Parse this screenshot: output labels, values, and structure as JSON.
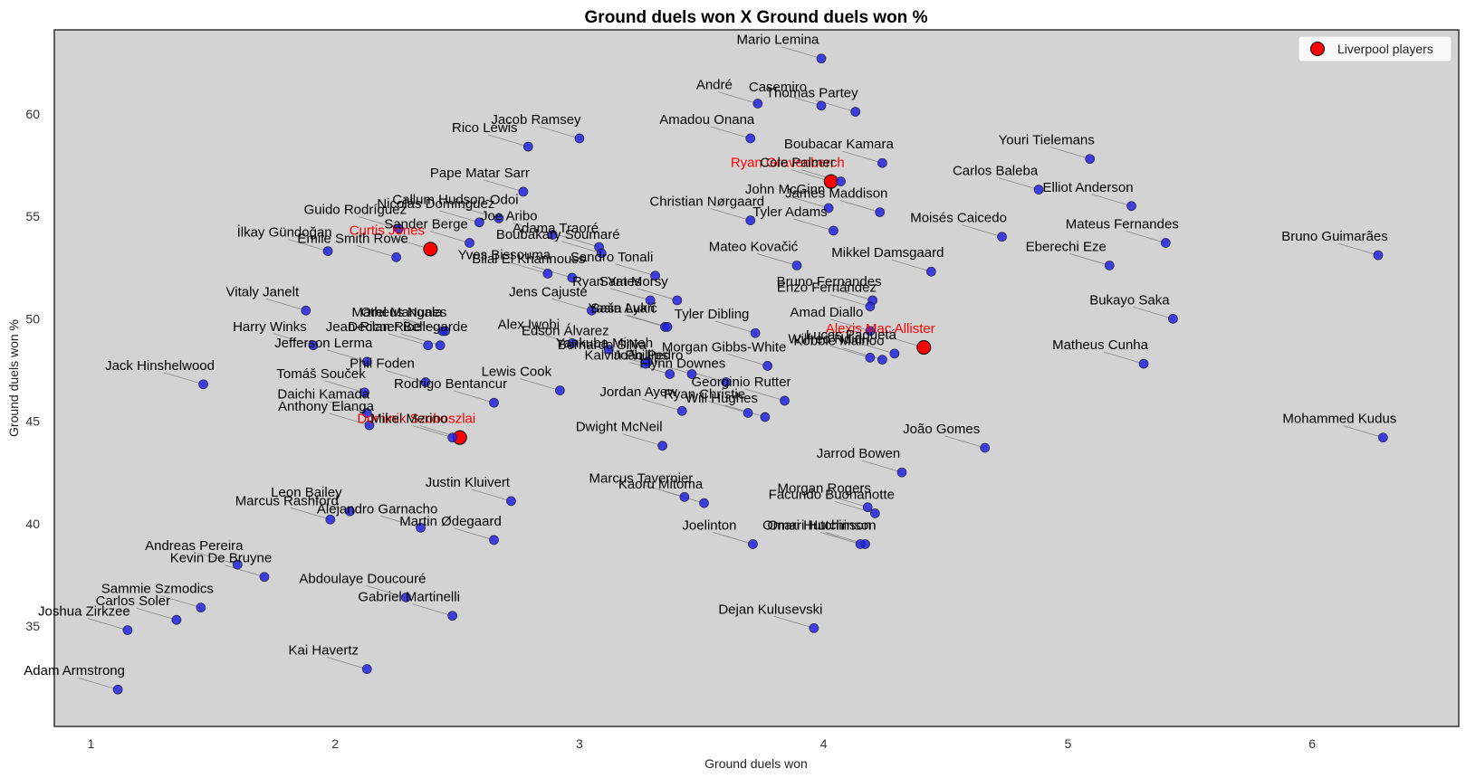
{
  "chart_data": {
    "type": "scatter",
    "title": "Ground duels won X Ground duels won %",
    "xlabel": "Ground duels won",
    "ylabel": "Ground duels won %",
    "xlim": [
      0.85,
      6.6
    ],
    "ylim": [
      30.1,
      64.1
    ],
    "xticks": [
      1,
      2,
      3,
      4,
      5,
      6
    ],
    "yticks": [
      35,
      40,
      45,
      50,
      55,
      60
    ],
    "grid": false,
    "legend_position": "top-right",
    "colors": {
      "background": "#d3d3d3",
      "points": "#2323e0",
      "highlight": "#ff0000",
      "label_default": "#000000",
      "label_highlight": "#ff0000"
    },
    "series": [
      {
        "name": "Liverpool players",
        "points": [
          {
            "label": "Ryan Gravenberch",
            "x": 4.03,
            "y": 56.7
          },
          {
            "label": "Curtis Jones",
            "x": 2.39,
            "y": 53.4
          },
          {
            "label": "Alexis Mac Allister",
            "x": 4.41,
            "y": 48.6
          },
          {
            "label": "Dominik Szoboszlai",
            "x": 2.51,
            "y": 44.2
          }
        ]
      },
      {
        "points": [
          {
            "label": "Mario Lemina",
            "x": 3.99,
            "y": 62.7
          },
          {
            "label": "André",
            "x": 3.73,
            "y": 60.5
          },
          {
            "label": "Casemiro",
            "x": 3.99,
            "y": 60.4
          },
          {
            "label": "Thomas Partey",
            "x": 4.13,
            "y": 60.1
          },
          {
            "label": "Jacob Ramsey",
            "x": 3.0,
            "y": 58.8
          },
          {
            "label": "Rico Lewis",
            "x": 2.79,
            "y": 58.4
          },
          {
            "label": "Amadou Onana",
            "x": 3.7,
            "y": 58.8
          },
          {
            "label": "Boubacar Kamara",
            "x": 4.24,
            "y": 57.6
          },
          {
            "label": "Youri Tielemans",
            "x": 5.09,
            "y": 57.8
          },
          {
            "label": "Cole Palmer",
            "x": 4.07,
            "y": 56.7
          },
          {
            "label": "Carlos Baleba",
            "x": 4.88,
            "y": 56.3
          },
          {
            "label": "Pape Matar Sarr",
            "x": 2.77,
            "y": 56.2
          },
          {
            "label": "John McGinn",
            "x": 4.02,
            "y": 55.4
          },
          {
            "label": "Elliot Anderson",
            "x": 5.26,
            "y": 55.5
          },
          {
            "label": "Callum Hudson-Odoi",
            "x": 2.67,
            "y": 54.9
          },
          {
            "label": "Christian Nørgaard",
            "x": 3.7,
            "y": 54.8
          },
          {
            "label": "James Maddison",
            "x": 4.23,
            "y": 55.2
          },
          {
            "label": "Guido Rodríguez",
            "x": 2.26,
            "y": 54.4
          },
          {
            "label": "Nicolás Domínguez",
            "x": 2.59,
            "y": 54.7
          },
          {
            "label": "Joe Aribo",
            "x": 2.89,
            "y": 54.1
          },
          {
            "label": "Tyler Adams",
            "x": 4.04,
            "y": 54.3
          },
          {
            "label": "Moisés Caicedo",
            "x": 4.73,
            "y": 54.0
          },
          {
            "label": "Sander Berge",
            "x": 2.55,
            "y": 53.7
          },
          {
            "label": "Adama Traoré",
            "x": 3.08,
            "y": 53.5
          },
          {
            "label": "Mateus Fernandes",
            "x": 5.4,
            "y": 53.7
          },
          {
            "label": "İlkay Gündoğan",
            "x": 1.97,
            "y": 53.3
          },
          {
            "label": "Boubakary Soumaré",
            "x": 3.09,
            "y": 53.2
          },
          {
            "label": "Bruno Guimarães",
            "x": 6.27,
            "y": 53.1
          },
          {
            "label": "Emile Smith Rowe",
            "x": 2.25,
            "y": 53.0
          },
          {
            "label": "Mateo Kovačić",
            "x": 3.89,
            "y": 52.6
          },
          {
            "label": "Eberechi Eze",
            "x": 5.17,
            "y": 52.6
          },
          {
            "label": "Mikkel Damsgaard",
            "x": 4.44,
            "y": 52.3
          },
          {
            "label": "Yves Bissouma",
            "x": 2.87,
            "y": 52.2
          },
          {
            "label": "Sandro Tonali",
            "x": 3.31,
            "y": 52.1
          },
          {
            "label": "Bilal El Khannouss",
            "x": 2.97,
            "y": 52.0
          },
          {
            "label": "Bruno Fernandes",
            "x": 4.2,
            "y": 50.9
          },
          {
            "label": "Ryan Yates",
            "x": 3.29,
            "y": 50.9
          },
          {
            "label": "Sam Morsy",
            "x": 3.4,
            "y": 50.9
          },
          {
            "label": "Vitaly Janelt",
            "x": 1.88,
            "y": 50.4
          },
          {
            "label": "Jens Cajuste",
            "x": 3.05,
            "y": 50.4
          },
          {
            "label": "Enzo Fernández",
            "x": 4.19,
            "y": 50.6
          },
          {
            "label": "Yasin Ayari",
            "x": 3.35,
            "y": 49.6
          },
          {
            "label": "Bukayo Saka",
            "x": 5.43,
            "y": 50.0
          },
          {
            "label": "Saša Lukić",
            "x": 3.36,
            "y": 49.6
          },
          {
            "label": "Amad Diallo",
            "x": 4.19,
            "y": 49.4
          },
          {
            "label": "Orel Mangala",
            "x": 2.45,
            "y": 49.4
          },
          {
            "label": "Matheus Nunes",
            "x": 2.44,
            "y": 49.4
          },
          {
            "label": "Harry Winks",
            "x": 1.91,
            "y": 48.7
          },
          {
            "label": "Jean-Ricner Bellegarde",
            "x": 2.43,
            "y": 48.7
          },
          {
            "label": "Declan Rice",
            "x": 2.38,
            "y": 48.7
          },
          {
            "label": "Tyler Dibling",
            "x": 3.72,
            "y": 49.3
          },
          {
            "label": "Alex Iwobi",
            "x": 2.97,
            "y": 48.8
          },
          {
            "label": "Edson Álvarez",
            "x": 3.12,
            "y": 48.5
          },
          {
            "label": "Lucas Paquetá",
            "x": 4.29,
            "y": 48.3
          },
          {
            "label": "Jefferson Lerma",
            "x": 2.13,
            "y": 47.9
          },
          {
            "label": "Yankuba Minteh",
            "x": 3.28,
            "y": 47.9
          },
          {
            "label": "Bernardo Silva",
            "x": 3.27,
            "y": 47.8
          },
          {
            "label": "Morgan Gibbs-White",
            "x": 3.77,
            "y": 47.7
          },
          {
            "label": "Kobbie Mainoo",
            "x": 4.24,
            "y": 48.0
          },
          {
            "label": "Wilfred Ndidi",
            "x": 4.19,
            "y": 48.1
          },
          {
            "label": "Matheus Cunha",
            "x": 5.31,
            "y": 47.8
          },
          {
            "label": "Phil Foden",
            "x": 2.37,
            "y": 46.9
          },
          {
            "label": "Jack Hinshelwood",
            "x": 1.46,
            "y": 46.8
          },
          {
            "label": "João Pedro",
            "x": 3.46,
            "y": 47.3
          },
          {
            "label": "Kalvin Phillips",
            "x": 3.37,
            "y": 47.3
          },
          {
            "label": "Lewis Cook",
            "x": 2.92,
            "y": 46.5
          },
          {
            "label": "Tomáš Souček",
            "x": 2.12,
            "y": 46.4
          },
          {
            "label": "Flynn Downes",
            "x": 3.6,
            "y": 46.9
          },
          {
            "label": "Georginio Rutter",
            "x": 3.84,
            "y": 46.0
          },
          {
            "label": "Rodrigo Bentancur",
            "x": 2.65,
            "y": 45.9
          },
          {
            "label": "Daichi Kamada",
            "x": 2.13,
            "y": 45.4
          },
          {
            "label": "Jordan Ayew",
            "x": 3.42,
            "y": 45.5
          },
          {
            "label": "Ryan Christie",
            "x": 3.69,
            "y": 45.4
          },
          {
            "label": "Will Hughes",
            "x": 3.76,
            "y": 45.2
          },
          {
            "label": "Anthony Elanga",
            "x": 2.14,
            "y": 44.8
          },
          {
            "label": "Mikel Merino",
            "x": 2.48,
            "y": 44.2
          },
          {
            "label": "Dwight McNeil",
            "x": 3.34,
            "y": 43.8
          },
          {
            "label": "João Gomes",
            "x": 4.66,
            "y": 43.7
          },
          {
            "label": "Mohammed Kudus",
            "x": 6.29,
            "y": 44.2
          },
          {
            "label": "Jarrod Bowen",
            "x": 4.32,
            "y": 42.5
          },
          {
            "label": "Justin Kluivert",
            "x": 2.72,
            "y": 41.1
          },
          {
            "label": "Marcus Tavernier",
            "x": 3.43,
            "y": 41.3
          },
          {
            "label": "Kaoru Mitoma",
            "x": 3.51,
            "y": 41.0
          },
          {
            "label": "Morgan Rogers",
            "x": 4.18,
            "y": 40.8
          },
          {
            "label": "Facundo Buonanotte",
            "x": 4.21,
            "y": 40.5
          },
          {
            "label": "Leon Bailey",
            "x": 2.06,
            "y": 40.6
          },
          {
            "label": "Marcus Rashford",
            "x": 1.98,
            "y": 40.2
          },
          {
            "label": "Alejandro Garnacho",
            "x": 2.35,
            "y": 39.8
          },
          {
            "label": "Omari Hutchinson",
            "x": 4.17,
            "y": 39.0
          },
          {
            "label": "Omari Hutchinson",
            "x": 4.15,
            "y": 39.0
          },
          {
            "label": "Joelinton",
            "x": 3.71,
            "y": 39.0
          },
          {
            "label": "Martin Ødegaard",
            "x": 2.65,
            "y": 39.2
          },
          {
            "label": "Andreas Pereira",
            "x": 1.6,
            "y": 38.0
          },
          {
            "label": "Kevin De Bruyne",
            "x": 1.71,
            "y": 37.4
          },
          {
            "label": "Abdoulaye Doucouré",
            "x": 2.29,
            "y": 36.4
          },
          {
            "label": "Sammie Szmodics",
            "x": 1.45,
            "y": 35.9
          },
          {
            "label": "Gabriel Martinelli",
            "x": 2.48,
            "y": 35.5
          },
          {
            "label": "Carlos Soler",
            "x": 1.35,
            "y": 35.3
          },
          {
            "label": "Joshua Zirkzee",
            "x": 1.15,
            "y": 34.8
          },
          {
            "label": "Dejan Kulusevski",
            "x": 3.96,
            "y": 34.9
          },
          {
            "label": "Kai Havertz",
            "x": 2.13,
            "y": 32.9
          },
          {
            "label": "Adam Armstrong",
            "x": 1.11,
            "y": 31.9
          }
        ]
      }
    ]
  }
}
